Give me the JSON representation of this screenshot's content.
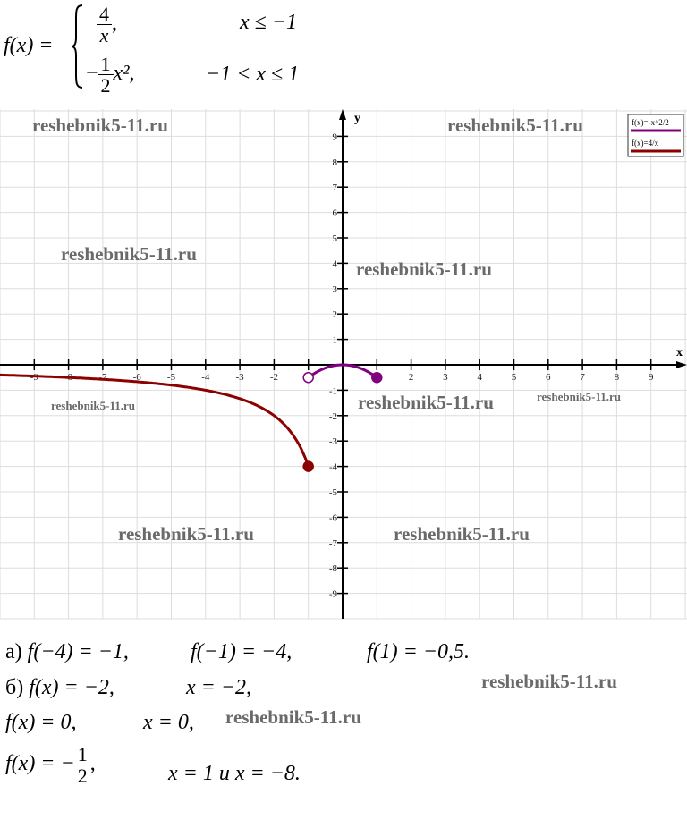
{
  "definition": {
    "lhs": "f(x) =",
    "case1": {
      "num": "4",
      "den": "x",
      "suffix": ",",
      "condition": "x ≤ −1"
    },
    "case2": {
      "sign": "−",
      "num": "1",
      "den": "2",
      "expr": "x², ",
      "condition": "−1 < x ≤ 1"
    }
  },
  "chart_data": {
    "type": "line",
    "xlabel": "x",
    "ylabel": "y",
    "xlim": [
      -10,
      10
    ],
    "ylim": [
      -10,
      10
    ],
    "xticks": [
      -9,
      -8,
      -7,
      -6,
      -5,
      -4,
      -3,
      -2,
      -1,
      1,
      2,
      3,
      4,
      5,
      6,
      7,
      8,
      9
    ],
    "yticks": [
      9,
      8,
      7,
      6,
      5,
      4,
      3,
      2,
      1,
      -1,
      -2,
      -3,
      -4,
      -5,
      -6,
      -7,
      -8,
      -9
    ],
    "grid": true,
    "legend_placement": "top-right",
    "series": [
      {
        "name": "f(x)=-x^2/2",
        "formula": "-x^2/2",
        "domain": [
          -1,
          1
        ],
        "color": "#800080",
        "endpoints": [
          {
            "x": -1,
            "y": -0.5,
            "filled": false
          },
          {
            "x": 1,
            "y": -0.5,
            "filled": true
          }
        ]
      },
      {
        "name": "f(x)=4/x",
        "formula": "4/x",
        "domain": [
          -10,
          -1
        ],
        "color": "#8b0000",
        "endpoints": [
          {
            "x": -1,
            "y": -4,
            "filled": true
          }
        ]
      }
    ]
  },
  "answers": {
    "a": {
      "label": "а)",
      "items": [
        "f(−4) = −1,",
        "f(−1) = −4,",
        "f(1) = −0,5."
      ]
    },
    "b": {
      "label": "б)",
      "eq": "f(x) = −2,",
      "sol": "x = −2,"
    },
    "c": {
      "eq": "f(x) = 0,",
      "sol": "x = 0,"
    },
    "d": {
      "eq": "f(x) = −",
      "num": "1",
      "den": "2",
      "comma": ",",
      "sol": "x = 1 и x = −8."
    }
  },
  "watermark": "reshebnik5-11.ru"
}
